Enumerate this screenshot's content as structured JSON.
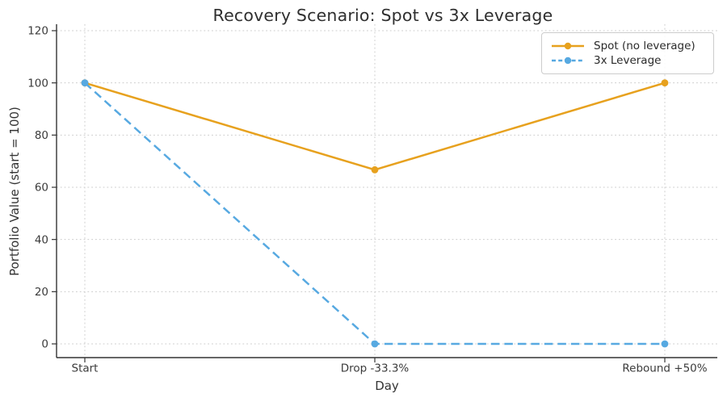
{
  "chart_data": {
    "type": "line",
    "title": "Recovery Scenario: Spot vs 3x Leverage",
    "xlabel": "Day",
    "ylabel": "Portfolio Value (start = 100)",
    "categories": [
      "Start",
      "Drop -33.3%",
      "Rebound +50%"
    ],
    "series": [
      {
        "name": "Spot (no leverage)",
        "color": "#E7A11E",
        "linestyle": "solid",
        "marker": "circle",
        "values": [
          100,
          66.7,
          100
        ]
      },
      {
        "name": "3x Leverage",
        "color": "#57A9E1",
        "linestyle": "dashed",
        "marker": "circle",
        "values": [
          100,
          0,
          0
        ]
      }
    ],
    "yticks": [
      0,
      20,
      40,
      60,
      80,
      100,
      120
    ],
    "ylim": [
      -5.3,
      122.5
    ],
    "grid": true,
    "grid_color": "#cccccc",
    "axis_color": "#333333",
    "text_color": "#3b3b3b",
    "legend_position": "upper right",
    "background": "#ffffff"
  }
}
